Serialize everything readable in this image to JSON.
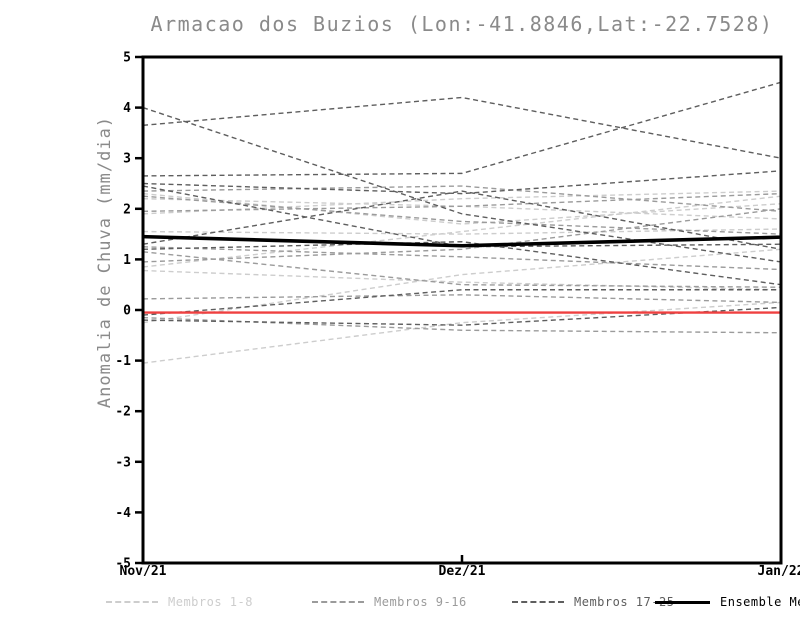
{
  "title": "Armacao dos Buzios (Lon:-41.8846,Lat:-22.7528)",
  "chart_data": {
    "type": "line",
    "title": "Armacao dos Buzios (Lon:-41.8846,Lat:-22.7528)",
    "xlabel": "",
    "ylabel": "Anomalia de Chuva (mm/dia)",
    "x_categories": [
      "Nov/21",
      "Dez/21",
      "Jan/22"
    ],
    "ylim": [
      -5,
      5
    ],
    "ytick_step": 1,
    "grid": false,
    "legend_position": "bottom",
    "series_groups": [
      {
        "name": "Membros 1-8",
        "color": "#cdcdcd",
        "line_style": "dashed",
        "members": [
          {
            "id": "membro-1",
            "values": [
              2.3,
              1.7,
              2.1
            ]
          },
          {
            "id": "membro-2",
            "values": [
              2.2,
              2.05,
              1.8
            ]
          },
          {
            "id": "membro-3",
            "values": [
              1.9,
              2.2,
              2.35
            ]
          },
          {
            "id": "membro-4",
            "values": [
              1.55,
              1.5,
              1.6
            ]
          },
          {
            "id": "membro-5",
            "values": [
              0.85,
              1.55,
              2.25
            ]
          },
          {
            "id": "membro-6",
            "values": [
              0.78,
              0.55,
              0.4
            ]
          },
          {
            "id": "membro-7",
            "values": [
              -0.25,
              0.7,
              1.2
            ]
          },
          {
            "id": "membro-8",
            "values": [
              -1.05,
              -0.25,
              0.15
            ]
          }
        ]
      },
      {
        "name": "Membros 9-16",
        "color": "#9b9b9b",
        "line_style": "dashed",
        "members": [
          {
            "id": "membro-9",
            "values": [
              2.35,
              2.45,
              1.95
            ]
          },
          {
            "id": "membro-10",
            "values": [
              2.25,
              1.75,
              1.5
            ]
          },
          {
            "id": "membro-11",
            "values": [
              1.95,
              2.05,
              2.3
            ]
          },
          {
            "id": "membro-12",
            "values": [
              1.25,
              1.05,
              0.8
            ]
          },
          {
            "id": "membro-13",
            "values": [
              1.15,
              0.5,
              0.45
            ]
          },
          {
            "id": "membro-14",
            "values": [
              0.95,
              1.2,
              2.0
            ]
          },
          {
            "id": "membro-15",
            "values": [
              0.22,
              0.3,
              0.15
            ]
          },
          {
            "id": "membro-16",
            "values": [
              -0.15,
              -0.4,
              -0.45
            ]
          }
        ]
      },
      {
        "name": "Membros 17-25",
        "color": "#5e5e5e",
        "line_style": "dashed",
        "members": [
          {
            "id": "membro-17",
            "values": [
              4.0,
              1.9,
              0.95
            ]
          },
          {
            "id": "membro-18",
            "values": [
              3.65,
              4.2,
              3.0
            ]
          },
          {
            "id": "membro-19",
            "values": [
              2.65,
              2.7,
              4.5
            ]
          },
          {
            "id": "membro-20",
            "values": [
              2.5,
              2.3,
              2.75
            ]
          },
          {
            "id": "membro-21",
            "values": [
              2.45,
              1.25,
              1.3
            ]
          },
          {
            "id": "membro-22",
            "values": [
              1.3,
              2.35,
              1.2
            ]
          },
          {
            "id": "membro-23",
            "values": [
              1.2,
              1.35,
              0.5
            ]
          },
          {
            "id": "membro-24",
            "values": [
              -0.1,
              0.4,
              0.4
            ]
          },
          {
            "id": "membro-25",
            "values": [
              -0.2,
              -0.3,
              0.05
            ]
          }
        ]
      }
    ],
    "reference_line": {
      "id": "zero-anomaly-reference",
      "color": "#ef4040",
      "values": [
        -0.05,
        -0.05,
        -0.05
      ]
    },
    "ensemble_mean": {
      "name": "Ensemble Mean",
      "color": "#000000",
      "values": [
        1.45,
        1.27,
        1.44
      ]
    }
  },
  "legend": {
    "entries": [
      {
        "label": "Membros 1-8",
        "color": "#cdcdcd",
        "style": "dashed"
      },
      {
        "label": "Membros 9-16",
        "color": "#9b9b9b",
        "style": "dashed"
      },
      {
        "label": "Membros 17-25",
        "color": "#5e5e5e",
        "style": "dashed"
      },
      {
        "label": "Ensemble Mean",
        "color": "#000000",
        "style": "solid"
      }
    ]
  }
}
